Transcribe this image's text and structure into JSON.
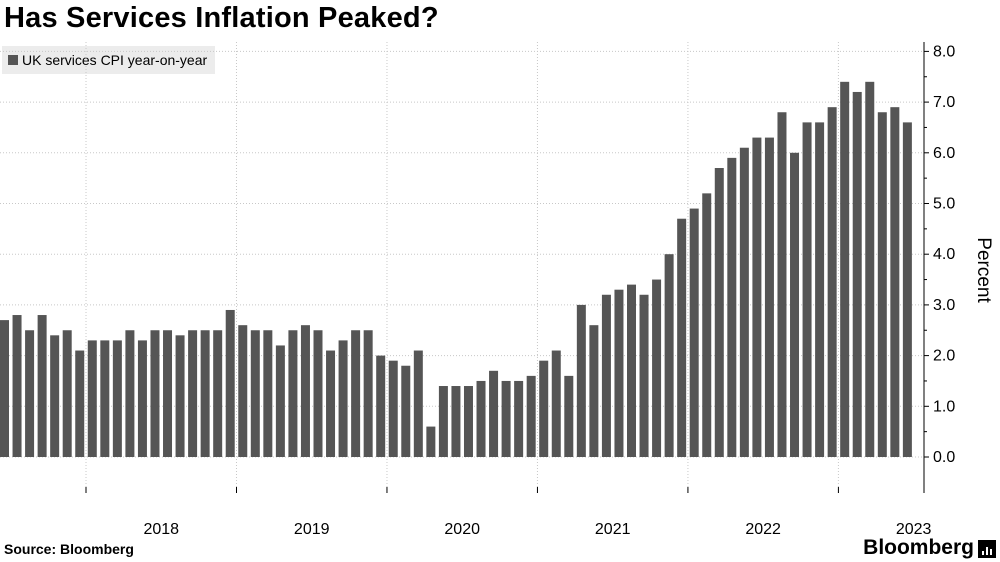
{
  "title": "Has Services Inflation Peaked?",
  "legend": {
    "label": "UK services CPI year-on-year",
    "color": "#555555"
  },
  "source": "Source: Bloomberg",
  "brand": "Bloomberg",
  "brand_icon": "bloomberg-bars-icon",
  "chart_data": {
    "type": "bar",
    "title": "Has Services Inflation Peaked?",
    "ylabel": "Percent",
    "xlabel": "",
    "ylim": [
      -0.7,
      8.0
    ],
    "yticks": [
      "0.0",
      "1.0",
      "2.0",
      "3.0",
      "4.0",
      "5.0",
      "6.0",
      "7.0",
      "8.0"
    ],
    "ytick_values": [
      0,
      1,
      2,
      3,
      4,
      5,
      6,
      7,
      8
    ],
    "xtick_labels": [
      "2018",
      "2019",
      "2020",
      "2021",
      "2022",
      "2023"
    ],
    "grid": true,
    "legend_position": "top-left",
    "series": [
      {
        "name": "UK services CPI year-on-year",
        "color": "#555555",
        "start": "2017-06",
        "values": [
          2.7,
          2.8,
          2.5,
          2.8,
          2.4,
          2.5,
          2.1,
          2.3,
          2.3,
          2.3,
          2.5,
          2.3,
          2.5,
          2.5,
          2.4,
          2.5,
          2.5,
          2.5,
          2.9,
          2.6,
          2.5,
          2.5,
          2.2,
          2.5,
          2.6,
          2.5,
          2.1,
          2.3,
          2.5,
          2.5,
          2.0,
          1.9,
          1.8,
          2.1,
          0.6,
          1.4,
          1.4,
          1.4,
          1.5,
          1.7,
          1.5,
          1.5,
          1.6,
          1.9,
          2.1,
          1.6,
          3.0,
          2.6,
          3.2,
          3.3,
          3.4,
          3.2,
          3.5,
          4.0,
          4.7,
          4.9,
          5.2,
          5.7,
          5.9,
          6.1,
          6.3,
          6.3,
          6.8,
          6.0,
          6.6,
          6.6,
          6.9,
          7.4,
          7.2,
          7.4,
          6.8,
          6.9,
          6.6
        ]
      }
    ]
  }
}
